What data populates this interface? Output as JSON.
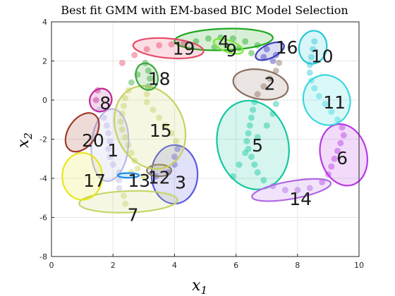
{
  "chart_data": {
    "type": "scatter",
    "title": "Best fit GMM with EM-based BIC Model Selection",
    "xlabel": "x",
    "xlabel_sub": "1",
    "ylabel": "x",
    "ylabel_sub": "2",
    "xlim": [
      0,
      10
    ],
    "ylim": [
      -8,
      4
    ],
    "xticks": [
      0,
      2,
      4,
      6,
      8,
      10
    ],
    "yticks": [
      -8,
      -6,
      -4,
      -2,
      0,
      2,
      4
    ],
    "grid": true,
    "components": [
      {
        "label": "1",
        "mean": [
          1.9,
          -2.3
        ],
        "rx": 0.6,
        "ry": 1.85,
        "angle": -5,
        "color": "#b8b8e8"
      },
      {
        "label": "2",
        "mean": [
          6.8,
          0.8
        ],
        "rx": 0.9,
        "ry": 0.75,
        "angle": -10,
        "color": "#8b6e5e"
      },
      {
        "label": "3",
        "mean": [
          4.0,
          -3.8
        ],
        "rx": 0.75,
        "ry": 1.5,
        "angle": 0,
        "color": "#5a5ae0"
      },
      {
        "label": "4",
        "mean": [
          5.6,
          3.1
        ],
        "rx": 1.6,
        "ry": 0.55,
        "angle": 2,
        "color": "#1fa81f"
      },
      {
        "label": "5",
        "mean": [
          6.55,
          -2.3
        ],
        "rx": 1.15,
        "ry": 2.3,
        "angle": 15,
        "color": "#14c8a0"
      },
      {
        "label": "6",
        "mean": [
          9.5,
          -2.8
        ],
        "rx": 0.75,
        "ry": 1.6,
        "angle": 15,
        "color": "#b838e6"
      },
      {
        "label": "7",
        "mean": [
          2.5,
          -5.2
        ],
        "rx": 1.6,
        "ry": 0.55,
        "angle": 2,
        "color": "#c6d46a"
      },
      {
        "label": "8",
        "mean": [
          1.6,
          0.0
        ],
        "rx": 0.35,
        "ry": 0.6,
        "angle": -30,
        "color": "#c02a9a"
      },
      {
        "label": "9",
        "mean": [
          5.75,
          2.75
        ],
        "rx": 0.5,
        "ry": 0.3,
        "angle": -20,
        "color": "#7ce63a"
      },
      {
        "label": "10",
        "mean": [
          8.5,
          2.7
        ],
        "rx": 0.45,
        "ry": 0.85,
        "angle": -10,
        "color": "#26c7d9"
      },
      {
        "label": "11",
        "mean": [
          8.95,
          0.0
        ],
        "rx": 0.75,
        "ry": 1.3,
        "angle": 25,
        "color": "#3ad7dc"
      },
      {
        "label": "12",
        "mean": [
          3.5,
          -3.6
        ],
        "rx": 0.4,
        "ry": 0.3,
        "angle": 0,
        "color": "#8a7a5a"
      },
      {
        "label": "13",
        "mean": [
          2.5,
          -3.85
        ],
        "rx": 0.35,
        "ry": 0.12,
        "angle": 0,
        "color": "#1a8ee6"
      },
      {
        "label": "14",
        "mean": [
          7.8,
          -4.6
        ],
        "rx": 1.3,
        "ry": 0.45,
        "angle": 10,
        "color": "#b067e6"
      },
      {
        "label": "15",
        "mean": [
          3.2,
          -1.4
        ],
        "rx": 1.1,
        "ry": 2.2,
        "angle": 25,
        "color": "#c8d060"
      },
      {
        "label": "16",
        "mean": [
          7.1,
          2.5
        ],
        "rx": 0.5,
        "ry": 0.35,
        "angle": 25,
        "color": "#3c3cc0"
      },
      {
        "label": "17",
        "mean": [
          1.0,
          -3.9
        ],
        "rx": 0.65,
        "ry": 1.2,
        "angle": 0,
        "color": "#e6e61e"
      },
      {
        "label": "18",
        "mean": [
          3.1,
          1.2
        ],
        "rx": 0.35,
        "ry": 0.7,
        "angle": 20,
        "color": "#3aa83a"
      },
      {
        "label": "19",
        "mean": [
          3.8,
          2.65
        ],
        "rx": 1.15,
        "ry": 0.5,
        "angle": -5,
        "color": "#e84a6a"
      },
      {
        "label": "20",
        "mean": [
          1.0,
          -1.65
        ],
        "rx": 0.45,
        "ry": 1.1,
        "angle": -35,
        "color": "#a03a28"
      }
    ],
    "labels": [
      {
        "text": "1",
        "x": 2.0,
        "y": -2.55
      },
      {
        "text": "2",
        "x": 7.1,
        "y": 0.85
      },
      {
        "text": "3",
        "x": 4.2,
        "y": -4.2
      },
      {
        "text": "4",
        "x": 5.6,
        "y": 3.0
      },
      {
        "text": "5",
        "x": 6.7,
        "y": -2.3
      },
      {
        "text": "6",
        "x": 9.45,
        "y": -2.95
      },
      {
        "text": "7",
        "x": 2.65,
        "y": -5.85
      },
      {
        "text": "8",
        "x": 1.75,
        "y": -0.15
      },
      {
        "text": "9",
        "x": 5.85,
        "y": 2.55
      },
      {
        "text": "10",
        "x": 8.8,
        "y": 2.25
      },
      {
        "text": "11",
        "x": 9.2,
        "y": -0.1
      },
      {
        "text": "12",
        "x": 3.5,
        "y": -3.95
      },
      {
        "text": "13",
        "x": 2.85,
        "y": -4.1
      },
      {
        "text": "14",
        "x": 8.1,
        "y": -5.05
      },
      {
        "text": "15",
        "x": 3.55,
        "y": -1.55
      },
      {
        "text": "16",
        "x": 7.65,
        "y": 2.7
      },
      {
        "text": "17",
        "x": 1.4,
        "y": -4.1
      },
      {
        "text": "18",
        "x": 3.5,
        "y": 1.1
      },
      {
        "text": "19",
        "x": 4.3,
        "y": 2.65
      },
      {
        "text": "20",
        "x": 1.35,
        "y": -2.05
      }
    ],
    "path_points": [
      [
        2.4,
        -5.3
      ],
      [
        2.35,
        -4.9
      ],
      [
        2.2,
        -4.5
      ],
      [
        2.2,
        -4.1
      ],
      [
        2.2,
        -3.7
      ],
      [
        2.0,
        -3.3
      ],
      [
        1.9,
        -2.9
      ],
      [
        1.85,
        -2.5
      ],
      [
        1.9,
        -2.1
      ],
      [
        1.85,
        -1.7
      ],
      [
        1.8,
        -1.3
      ],
      [
        1.7,
        -0.9
      ],
      [
        1.55,
        -0.5
      ],
      [
        1.45,
        0.0
      ],
      [
        1.5,
        0.5
      ],
      [
        2.6,
        -3.7
      ],
      [
        3.0,
        -3.9
      ],
      [
        3.4,
        -3.9
      ],
      [
        3.8,
        -3.7
      ],
      [
        4.0,
        -3.3
      ],
      [
        4.0,
        -2.9
      ],
      [
        4.1,
        -2.5
      ],
      [
        4.05,
        -2.1
      ],
      [
        3.9,
        -1.7
      ],
      [
        3.7,
        -1.3
      ],
      [
        3.5,
        -0.9
      ],
      [
        3.3,
        -0.5
      ],
      [
        3.1,
        -0.1
      ],
      [
        3.1,
        0.3
      ],
      [
        3.15,
        0.7
      ],
      [
        3.2,
        1.1
      ],
      [
        3.15,
        1.5
      ],
      [
        3.05,
        1.9
      ],
      [
        2.8,
        1.3
      ],
      [
        2.6,
        0.9
      ],
      [
        2.5,
        0.5
      ],
      [
        2.4,
        0.1
      ],
      [
        2.35,
        -0.3
      ],
      [
        2.3,
        -0.7
      ],
      [
        2.25,
        -1.1
      ],
      [
        2.3,
        -1.5
      ],
      [
        2.4,
        -1.9
      ],
      [
        2.5,
        -2.3
      ],
      [
        2.6,
        -2.7
      ],
      [
        2.7,
        -3.1
      ],
      [
        2.8,
        -3.5
      ],
      [
        2.3,
        1.9
      ],
      [
        2.7,
        2.3
      ],
      [
        3.1,
        2.6
      ],
      [
        3.5,
        2.8
      ],
      [
        3.9,
        2.85
      ],
      [
        4.3,
        2.9
      ],
      [
        4.7,
        3.0
      ],
      [
        5.1,
        3.15
      ],
      [
        5.5,
        3.2
      ],
      [
        5.9,
        3.15
      ],
      [
        6.3,
        3.0
      ],
      [
        6.7,
        2.8
      ],
      [
        7.0,
        2.6
      ],
      [
        7.3,
        2.3
      ],
      [
        7.4,
        1.9
      ],
      [
        7.3,
        1.5
      ],
      [
        7.1,
        1.1
      ],
      [
        6.9,
        0.7
      ],
      [
        6.7,
        0.3
      ],
      [
        6.6,
        -0.1
      ],
      [
        6.55,
        -0.5
      ],
      [
        6.5,
        -0.9
      ],
      [
        6.45,
        -1.3
      ],
      [
        6.4,
        -1.7
      ],
      [
        6.35,
        -2.1
      ],
      [
        6.4,
        -2.5
      ],
      [
        6.5,
        -2.9
      ],
      [
        6.6,
        -3.3
      ],
      [
        6.7,
        -3.7
      ],
      [
        6.9,
        -4.1
      ],
      [
        7.2,
        -4.4
      ],
      [
        7.6,
        -4.6
      ],
      [
        8.0,
        -4.6
      ],
      [
        8.4,
        -4.5
      ],
      [
        8.8,
        -4.2
      ],
      [
        9.0,
        -3.8
      ],
      [
        9.1,
        -3.4
      ],
      [
        9.2,
        -3.0
      ],
      [
        9.3,
        -2.6
      ],
      [
        9.4,
        -2.2
      ],
      [
        9.5,
        -1.8
      ],
      [
        9.45,
        -1.4
      ],
      [
        9.3,
        -1.0
      ],
      [
        9.1,
        -0.6
      ],
      [
        8.9,
        -0.2
      ],
      [
        8.7,
        0.2
      ],
      [
        8.55,
        0.6
      ],
      [
        8.45,
        1.0
      ],
      [
        8.4,
        1.4
      ],
      [
        8.4,
        1.8
      ],
      [
        8.45,
        2.2
      ],
      [
        8.5,
        2.6
      ],
      [
        8.55,
        3.0
      ],
      [
        5.3,
        2.7
      ],
      [
        5.7,
        2.75
      ],
      [
        6.1,
        2.65
      ],
      [
        6.5,
        2.4
      ],
      [
        6.9,
        2.2
      ],
      [
        7.2,
        2.0
      ],
      [
        5.9,
        -3.9
      ],
      [
        6.1,
        -3.3
      ],
      [
        6.3,
        -2.7
      ],
      [
        6.7,
        -1.9
      ],
      [
        7.0,
        -1.3
      ],
      [
        7.2,
        -0.7
      ],
      [
        7.3,
        -0.2
      ]
    ]
  }
}
